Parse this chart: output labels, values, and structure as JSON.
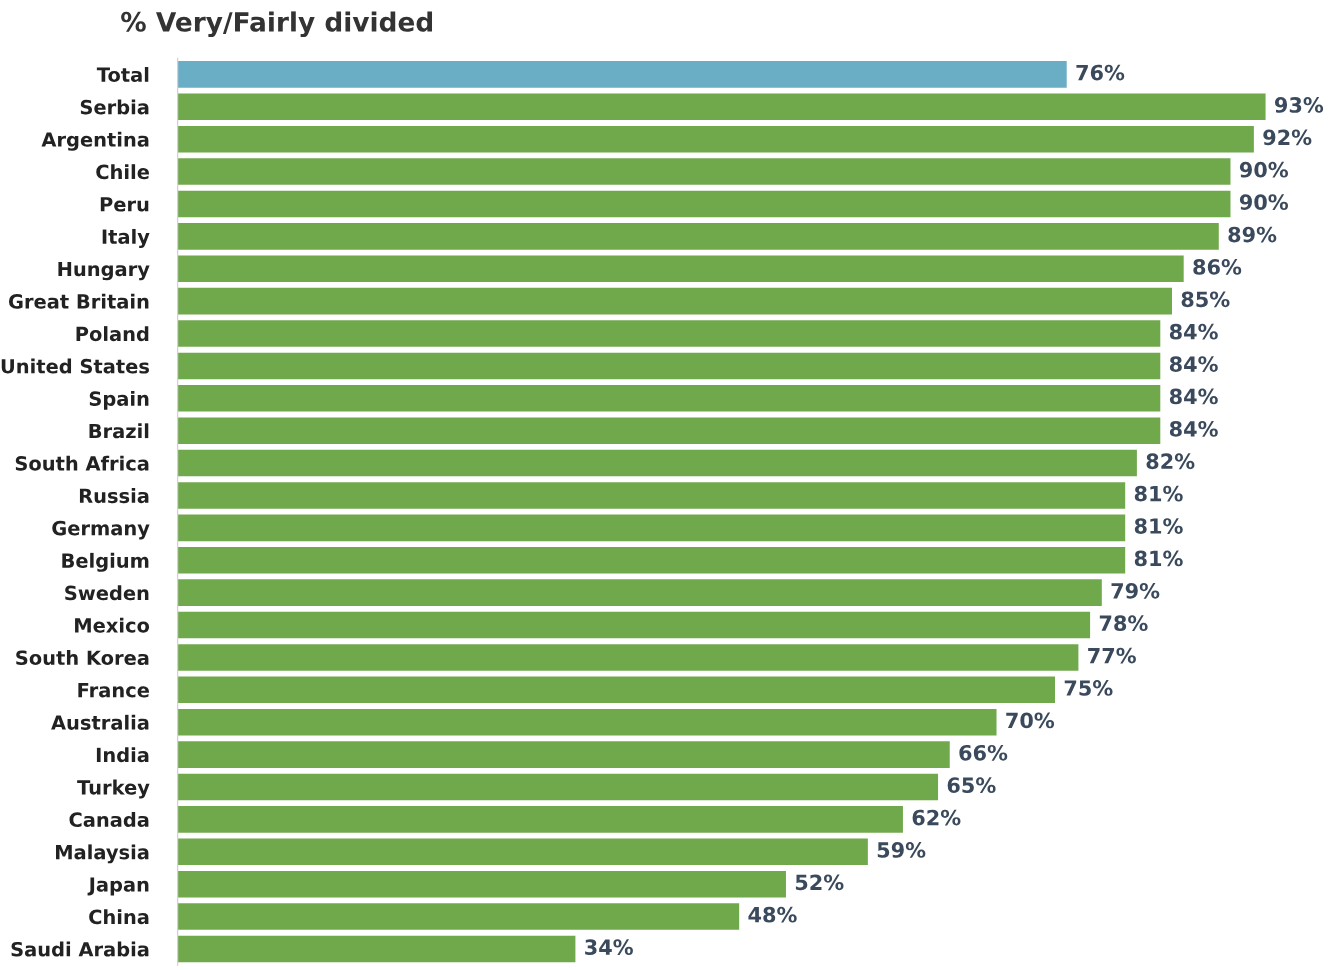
{
  "chart_data": {
    "type": "bar",
    "orientation": "horizontal",
    "title": "% Very/Fairly divided",
    "categories": [
      "Total",
      "Serbia",
      "Argentina",
      "Chile",
      "Peru",
      "Italy",
      "Hungary",
      "Great Britain",
      "Poland",
      "United States",
      "Spain",
      "Brazil",
      "South Africa",
      "Russia",
      "Germany",
      "Belgium",
      "Sweden",
      "Mexico",
      "South Korea",
      "France",
      "Australia",
      "India",
      "Turkey",
      "Canada",
      "Malaysia",
      "Japan",
      "China",
      "Saudi Arabia"
    ],
    "values": [
      76,
      93,
      92,
      90,
      90,
      89,
      86,
      85,
      84,
      84,
      84,
      84,
      82,
      81,
      81,
      81,
      79,
      78,
      77,
      75,
      70,
      66,
      65,
      62,
      59,
      52,
      48,
      34
    ],
    "value_labels": [
      "76%",
      "93%",
      "92%",
      "90%",
      "90%",
      "89%",
      "86%",
      "85%",
      "84%",
      "84%",
      "84%",
      "84%",
      "82%",
      "81%",
      "81%",
      "81%",
      "79%",
      "78%",
      "77%",
      "75%",
      "70%",
      "66%",
      "65%",
      "62%",
      "59%",
      "52%",
      "48%",
      "34%"
    ],
    "colors": [
      "#6aaec6",
      "#70a84c",
      "#70a84c",
      "#70a84c",
      "#70a84c",
      "#70a84c",
      "#70a84c",
      "#70a84c",
      "#70a84c",
      "#70a84c",
      "#70a84c",
      "#70a84c",
      "#70a84c",
      "#70a84c",
      "#70a84c",
      "#70a84c",
      "#70a84c",
      "#70a84c",
      "#70a84c",
      "#70a84c",
      "#70a84c",
      "#70a84c",
      "#70a84c",
      "#70a84c",
      "#70a84c",
      "#70a84c",
      "#70a84c",
      "#70a84c"
    ],
    "grid": false,
    "legend": false
  }
}
